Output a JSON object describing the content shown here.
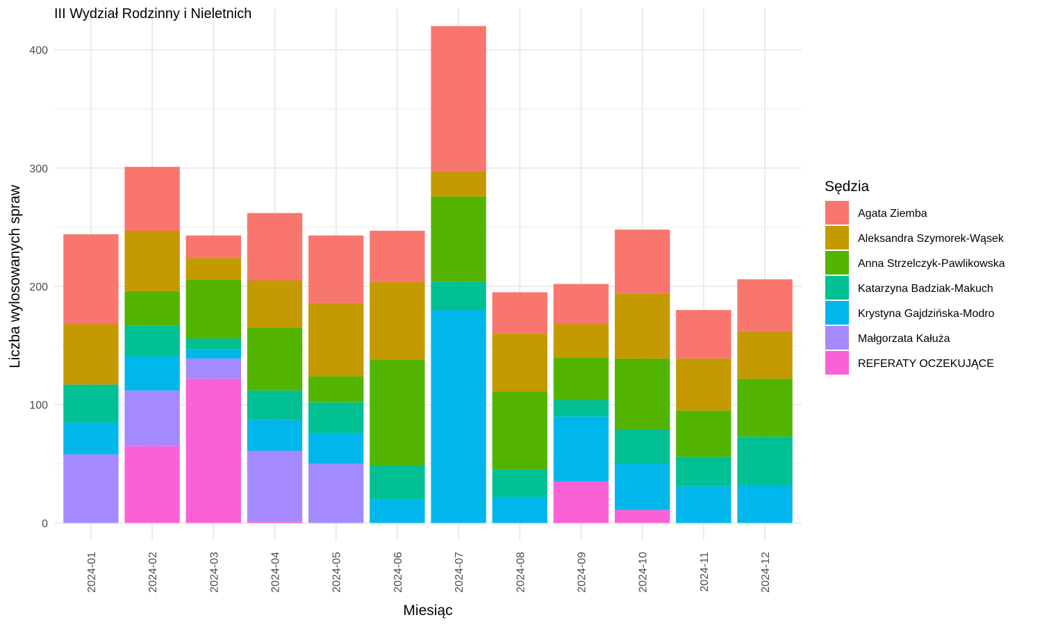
{
  "chart_data": {
    "type": "bar",
    "stacked": true,
    "title": "III Wydział Rodzinny i Nieletnich",
    "xlabel": "Miesiąc",
    "ylabel": "Liczba wylosowanych spraw",
    "ylim": [
      -15,
      435
    ],
    "yticks": [
      0,
      100,
      200,
      300,
      400
    ],
    "grid": true,
    "legend": {
      "title": "Sędzia",
      "position": "right"
    },
    "categories": [
      "2024-01",
      "2024-02",
      "2024-03",
      "2024-04",
      "2024-05",
      "2024-06",
      "2024-07",
      "2024-08",
      "2024-09",
      "2024-10",
      "2024-11",
      "2024-12"
    ],
    "series": [
      {
        "name": "Agata Ziemba",
        "color": "#F8766D",
        "values": [
          76,
          54,
          19,
          57,
          57,
          43,
          123,
          35,
          34,
          54,
          41,
          44
        ]
      },
      {
        "name": "Aleksandra Szymorek-Wąsek",
        "color": "#C49A00",
        "values": [
          51,
          51,
          18,
          40,
          62,
          66,
          21,
          49,
          28,
          55,
          44,
          40
        ]
      },
      {
        "name": "Anna Strzelczyk-Pawlikowska",
        "color": "#53B400",
        "values": [
          0,
          29,
          50,
          53,
          22,
          89,
          72,
          66,
          36,
          60,
          39,
          49
        ]
      },
      {
        "name": "Katarzyna Badziak-Makuch",
        "color": "#00C094",
        "values": [
          32,
          26,
          9,
          25,
          26,
          29,
          24,
          23,
          14,
          29,
          25,
          41
        ]
      },
      {
        "name": "Krystyna Gajdzińska-Modro",
        "color": "#00B6EB",
        "values": [
          27,
          29,
          8,
          26,
          26,
          20,
          180,
          22,
          55,
          39,
          31,
          32
        ]
      },
      {
        "name": "Małgorzata Kałuża",
        "color": "#A58AFF",
        "values": [
          58,
          47,
          17,
          60,
          50,
          0,
          0,
          0,
          0,
          0,
          0,
          0
        ]
      },
      {
        "name": "REFERATY OCZEKUJĄCE",
        "color": "#FB61D7",
        "values": [
          0,
          65,
          122,
          1,
          0,
          0,
          0,
          0,
          35,
          11,
          0,
          0
        ]
      }
    ]
  }
}
